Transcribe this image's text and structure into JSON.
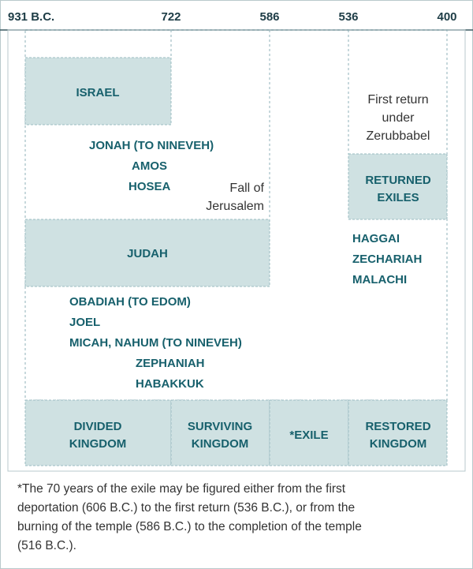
{
  "timeline": {
    "years": [
      "931 B.C.",
      "722",
      "586",
      "536",
      "400"
    ]
  },
  "kingdoms": {
    "israel": "ISRAEL",
    "judah": "JUDAH",
    "returned_exiles": [
      "RETURNED",
      "EXILES"
    ]
  },
  "prophets": {
    "israel": [
      "JONAH (TO NINEVEH)",
      "AMOS",
      "HOSEA"
    ],
    "judah": [
      "OBADIAH (TO EDOM)",
      "JOEL",
      "MICAH, NAHUM (TO NINEVEH)",
      "ZEPHANIAH",
      "HABAKKUK"
    ],
    "restoration": [
      "HAGGAI",
      "ZECHARIAH",
      "MALACHI"
    ]
  },
  "notes": {
    "fall": [
      "Fall of",
      "Jerusalem"
    ],
    "return": [
      "First return",
      "under",
      "Zerubbabel"
    ]
  },
  "periods": [
    [
      "DIVIDED",
      "KINGDOM"
    ],
    [
      "SURVIVING",
      "KINGDOM"
    ],
    [
      "*EXILE"
    ],
    [
      "RESTORED",
      "KINGDOM"
    ]
  ],
  "footnote": [
    "*The 70 years of the exile may be figured either from the first",
    "deportation (606 B.C.) to the first return (536 B.C.), or from the",
    "burning of the temple (586 B.C.) to the completion of the temple",
    "(516 B.C.)."
  ]
}
